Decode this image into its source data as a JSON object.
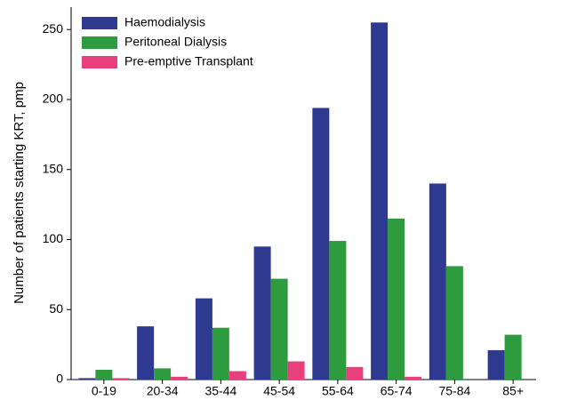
{
  "chart_data": {
    "type": "bar",
    "y_label": "Number of patients starting KRT, pmp",
    "categories": [
      "0-19",
      "20-34",
      "35-44",
      "45-54",
      "55-64",
      "65-74",
      "75-84",
      "85+"
    ],
    "series": [
      {
        "name": "Haemodialysis",
        "color": "#2e3a90",
        "values": [
          1,
          38,
          58,
          95,
          194,
          255,
          140,
          21
        ]
      },
      {
        "name": "Peritoneal Dialysis",
        "color": "#2e9b3e",
        "values": [
          7,
          8,
          37,
          72,
          99,
          115,
          81,
          32
        ]
      },
      {
        "name": "Pre-emptive Transplant",
        "color": "#e8407c",
        "values": [
          1,
          2,
          6,
          13,
          9,
          2,
          0,
          0
        ]
      }
    ],
    "ylim": [
      0,
      266
    ],
    "yticks": [
      0,
      50,
      100,
      150,
      200,
      250
    ],
    "legend": "upper left"
  }
}
